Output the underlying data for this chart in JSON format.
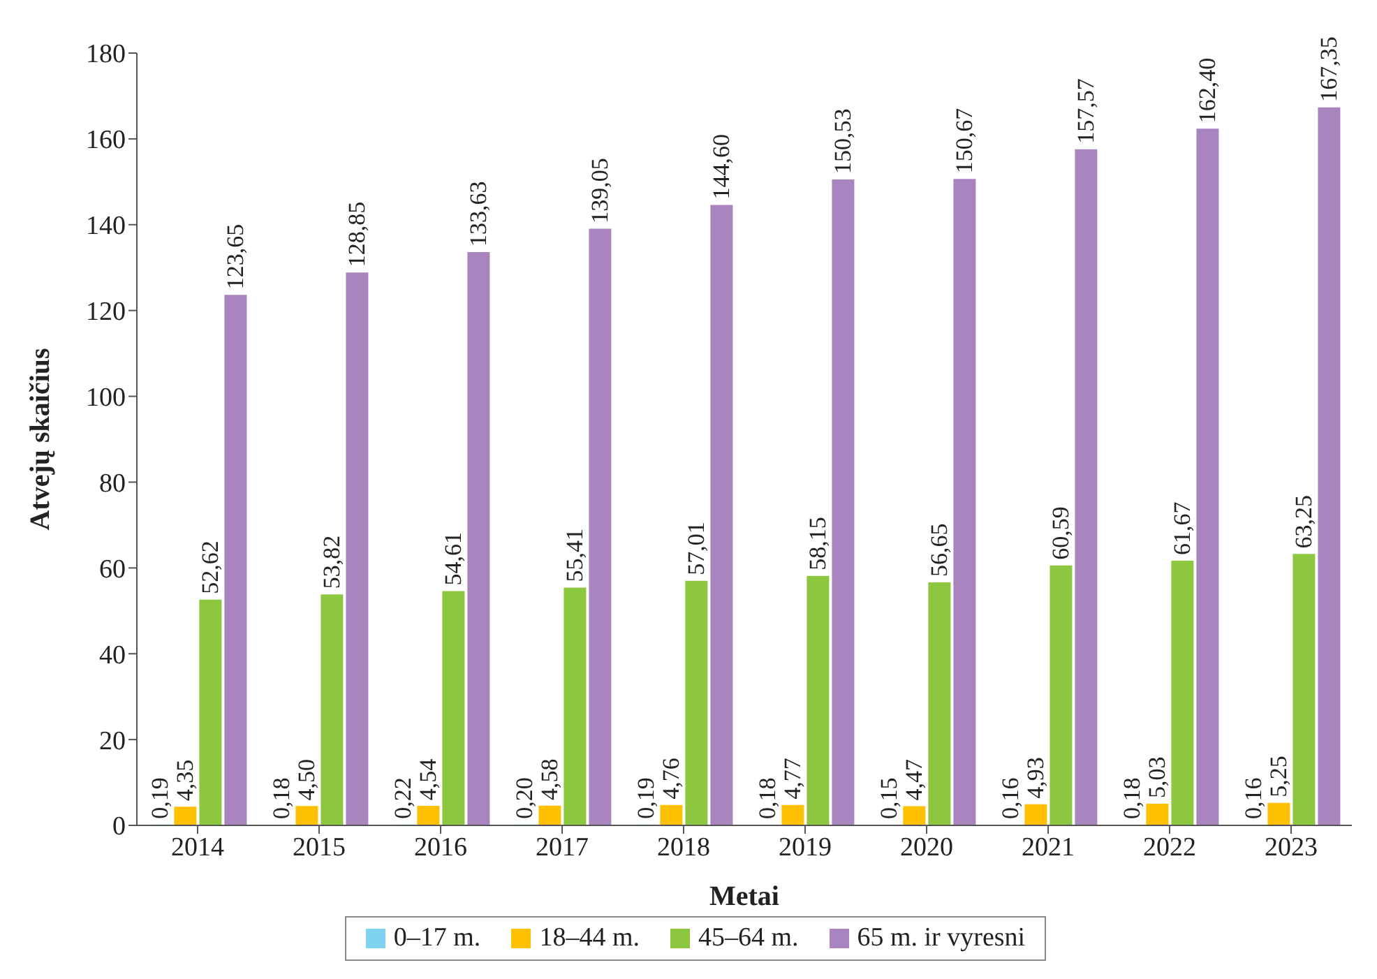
{
  "chart_data": {
    "type": "bar",
    "xlabel": "Metai",
    "ylabel": "Atvejų skaičius",
    "categories": [
      "2014",
      "2015",
      "2016",
      "2017",
      "2018",
      "2019",
      "2020",
      "2021",
      "2022",
      "2023"
    ],
    "series": [
      {
        "name": "0–17 m.",
        "color": "#7fd3f0",
        "values": [
          0.19,
          0.18,
          0.22,
          0.2,
          0.19,
          0.18,
          0.15,
          0.16,
          0.18,
          0.16
        ],
        "value_labels": [
          "0,19",
          "0,18",
          "0,22",
          "0,20",
          "0,19",
          "0,18",
          "0,15",
          "0,16",
          "0,18",
          "0,16"
        ]
      },
      {
        "name": "18–44 m.",
        "color": "#ffc000",
        "values": [
          4.35,
          4.5,
          4.54,
          4.58,
          4.76,
          4.77,
          4.47,
          4.93,
          5.03,
          5.25
        ],
        "value_labels": [
          "4,35",
          "4,50",
          "4,54",
          "4,58",
          "4,76",
          "4,77",
          "4,47",
          "4,93",
          "5,03",
          "5,25"
        ]
      },
      {
        "name": "45–64 m.",
        "color": "#8dc63f",
        "values": [
          52.62,
          53.82,
          54.61,
          55.41,
          57.01,
          58.15,
          56.65,
          60.59,
          61.67,
          63.25
        ],
        "value_labels": [
          "52,62",
          "53,82",
          "54,61",
          "55,41",
          "57,01",
          "58,15",
          "56,65",
          "60,59",
          "61,67",
          "63,25"
        ]
      },
      {
        "name": "65 m. ir vyresni",
        "color": "#a985c0",
        "values": [
          123.65,
          128.85,
          133.63,
          139.05,
          144.6,
          150.53,
          150.67,
          157.57,
          162.4,
          167.35
        ],
        "value_labels": [
          "123,65",
          "128,85",
          "133,63",
          "139,05",
          "144,60",
          "150,53",
          "150,67",
          "157,57",
          "162,40",
          "167,35"
        ]
      }
    ],
    "ylim": [
      0,
      180
    ],
    "yticks": [
      0,
      20,
      40,
      60,
      80,
      100,
      120,
      140,
      160,
      180
    ],
    "grid": false,
    "legend": "bottom"
  }
}
